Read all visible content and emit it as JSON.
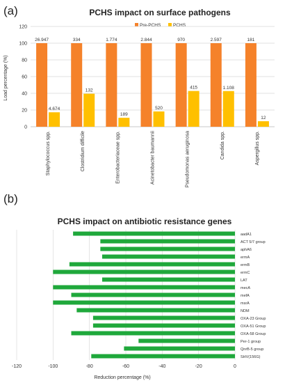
{
  "panels": {
    "a": "(a)",
    "b": "(b)"
  },
  "chart_data": [
    {
      "type": "bar",
      "title": "PCHS impact on surface pathogens",
      "ylabel": "Load percentage (%)",
      "xlabel": "",
      "ylim": [
        0,
        120
      ],
      "yticks": [
        0,
        20,
        40,
        60,
        80,
        100,
        120
      ],
      "grid": true,
      "legend_position": "top",
      "categories": [
        "Staphylococcus spp.",
        "Clostridium difficile",
        "Enterobacteriaceae spp.",
        "Acinetobacter baumannii",
        "Pseudomonas aeruginosa",
        "Candida spp.",
        "Aspergillus spp."
      ],
      "series": [
        {
          "name": "Pre-PCHS",
          "color": "#f5822a",
          "values": [
            100,
            100,
            100,
            100,
            100,
            100,
            100
          ],
          "labels": [
            "26.947",
            "334",
            "1.774",
            "2.844",
            "970",
            "2.597",
            "181"
          ]
        },
        {
          "name": "PCHS",
          "color": "#ffc000",
          "values": [
            17.3,
            39.5,
            10.7,
            18.3,
            42.8,
            42.7,
            6.6
          ],
          "labels": [
            "4.674",
            "132",
            "189",
            "520",
            "415",
            "1.108",
            "12"
          ]
        }
      ]
    },
    {
      "type": "bar",
      "orientation": "horizontal",
      "title": "PCHS impact on antibiotic resistance genes",
      "xlabel": "Reduction percentage (%)",
      "ylabel": "",
      "xlim": [
        -120,
        0
      ],
      "xticks": [
        -120,
        -100,
        -80,
        -60,
        -40,
        -20,
        0
      ],
      "grid": true,
      "color": "#1fa83b",
      "categories": [
        "aadA1",
        "ACT 5/7 group",
        "aphA6",
        "ermA",
        "ermB",
        "ermC",
        "LAT",
        "mecA",
        "mefA",
        "msrA",
        "NDM",
        "OXA-23 Group",
        "OXA-51 Group",
        "OXA-58 Group",
        "Per-1 group",
        "QnrB-5 group",
        "SHV(156G)"
      ],
      "values": [
        -89,
        -74,
        -74,
        -73,
        -91,
        -100,
        -73,
        -100,
        -90,
        -100,
        -87,
        -78,
        -78,
        -90,
        -53,
        -61,
        -79
      ]
    }
  ]
}
